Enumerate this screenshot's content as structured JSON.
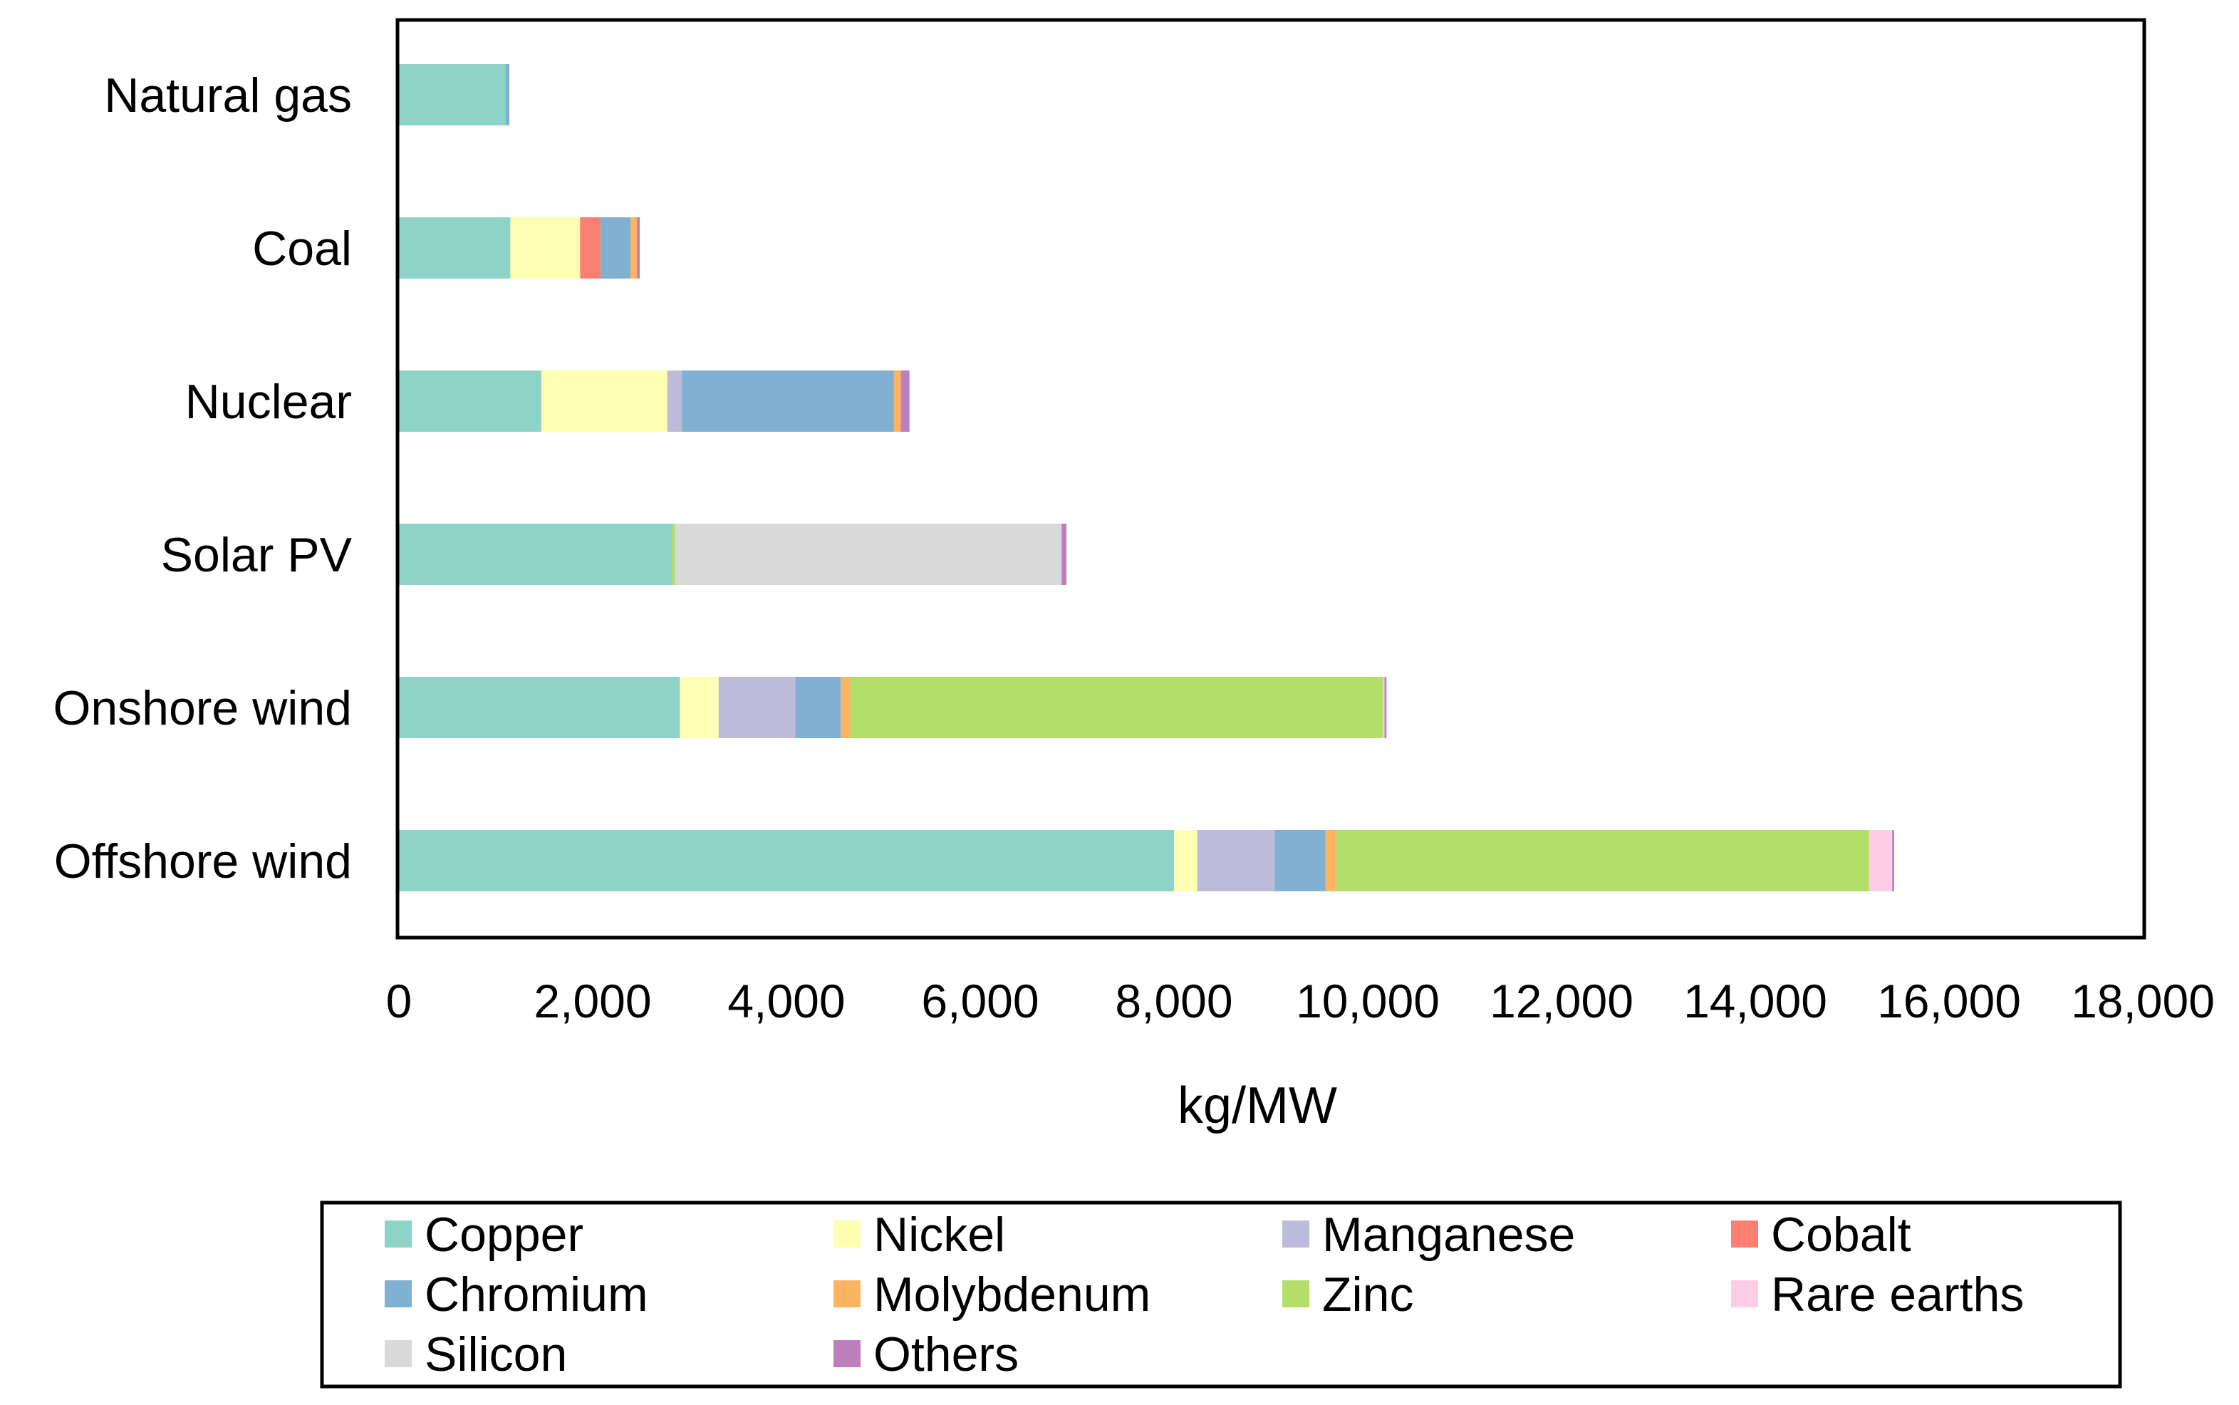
{
  "chart_data": {
    "type": "bar",
    "orientation": "horizontal",
    "stacked": true,
    "title": "",
    "xlabel": "kg/MW",
    "ylabel": "",
    "xlim": [
      0,
      18000
    ],
    "xticks": [
      0,
      2000,
      4000,
      6000,
      8000,
      10000,
      12000,
      14000,
      16000,
      18000
    ],
    "xtick_labels": [
      "0",
      "2,000",
      "4,000",
      "6,000",
      "8,000",
      "10,000",
      "12,000",
      "14,000",
      "16,000",
      "18,000"
    ],
    "grid": false,
    "legend_position": "bottom",
    "categories": [
      "Natural gas",
      "Coal",
      "Nuclear",
      "Solar PV",
      "Onshore wind",
      "Offshore wind"
    ],
    "series": [
      {
        "name": "Copper",
        "color": "#8dd3c7",
        "values": [
          1100,
          1150,
          1470,
          2820,
          2900,
          8000
        ]
      },
      {
        "name": "Nickel",
        "color": "#ffffb3",
        "values": [
          0,
          720,
          1300,
          0,
          400,
          240
        ]
      },
      {
        "name": "Manganese",
        "color": "#bebada",
        "values": [
          0,
          0,
          150,
          0,
          790,
          800
        ]
      },
      {
        "name": "Cobalt",
        "color": "#fb8072",
        "values": [
          0,
          210,
          0,
          0,
          0,
          0
        ]
      },
      {
        "name": "Chromium",
        "color": "#80b1d3",
        "values": [
          40,
          310,
          2190,
          0,
          470,
          525
        ]
      },
      {
        "name": "Molybdenum",
        "color": "#fdb462",
        "values": [
          0,
          66,
          70,
          0,
          99,
          109
        ]
      },
      {
        "name": "Zinc",
        "color": "#b3de69",
        "values": [
          0,
          0,
          0,
          30,
          5500,
          5500
        ]
      },
      {
        "name": "Rare earths",
        "color": "#fccde5",
        "values": [
          0,
          0,
          0,
          0,
          14,
          239
        ]
      },
      {
        "name": "Silicon",
        "color": "#d9d9d9",
        "values": [
          0,
          0,
          0,
          3990,
          0,
          0
        ]
      },
      {
        "name": "Others",
        "color": "#bc80bd",
        "values": [
          0,
          30,
          90,
          50,
          20,
          20
        ]
      }
    ]
  }
}
